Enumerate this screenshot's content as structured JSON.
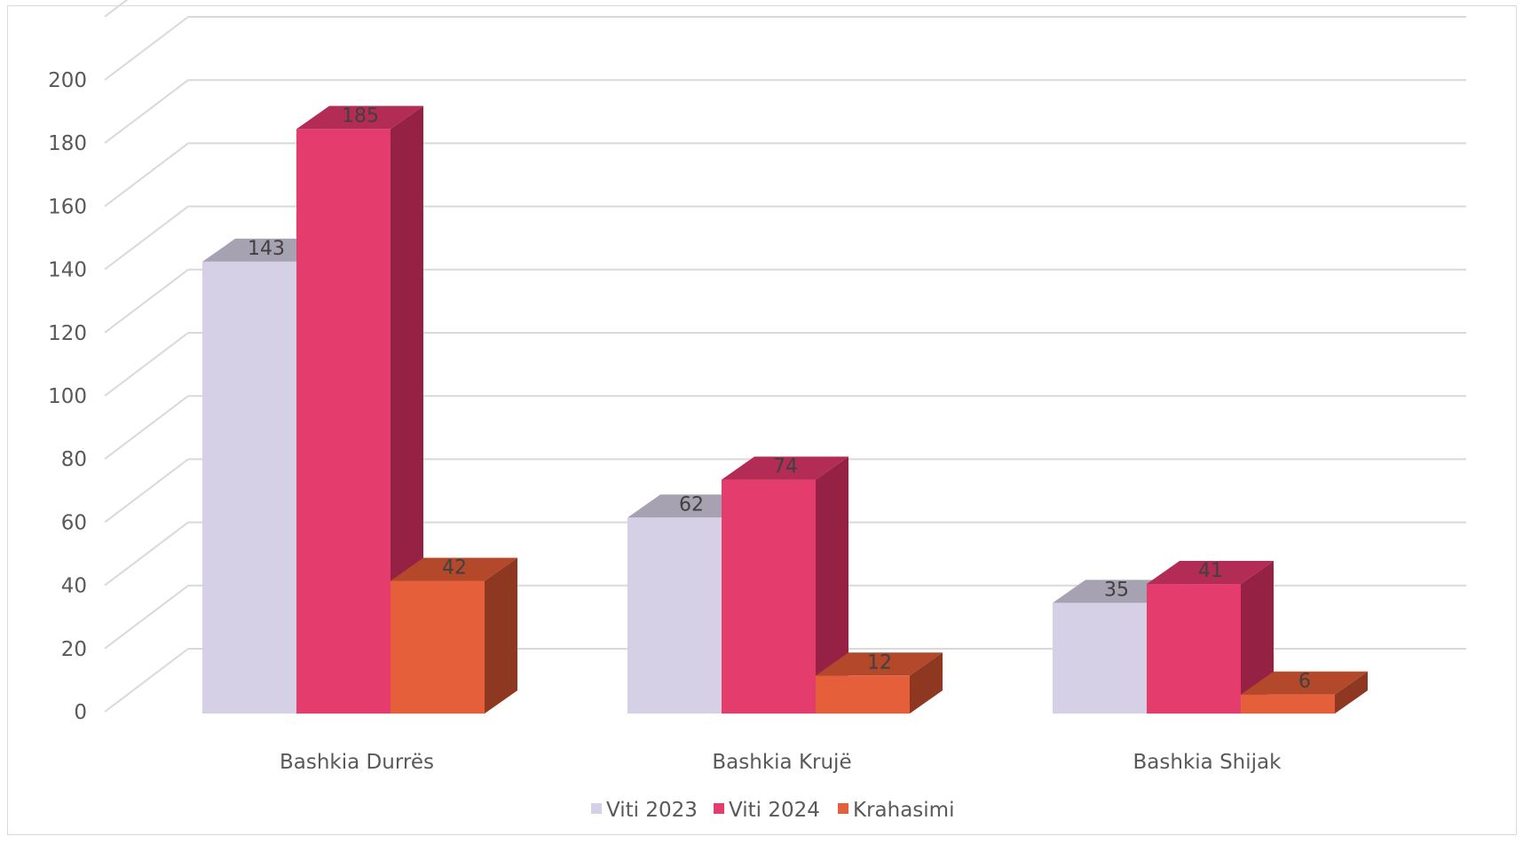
{
  "chart_data": {
    "type": "bar",
    "categories": [
      "Bashkia Durrës",
      "Bashkia Krujë",
      "Bashkia Shijak"
    ],
    "series": [
      {
        "name": "Viti 2023",
        "values": [
          143,
          62,
          35
        ],
        "color": "#d5d0e5",
        "top": "#a7a2b1",
        "side": "#a49fb4"
      },
      {
        "name": "Viti 2024",
        "values": [
          185,
          74,
          41
        ],
        "color": "#e33c6d",
        "top": "#b22c56",
        "side": "#952244"
      },
      {
        "name": "Krahasimi",
        "values": [
          42,
          12,
          6
        ],
        "color": "#e5603a",
        "top": "#b3482a",
        "side": "#8e3822"
      }
    ],
    "yticks": [
      "0",
      "20",
      "40",
      "60",
      "80",
      "100",
      "120",
      "140",
      "160",
      "180",
      "200"
    ],
    "ylim": [
      0,
      200
    ],
    "grid": true,
    "legend": "bottom",
    "three_d": true
  }
}
